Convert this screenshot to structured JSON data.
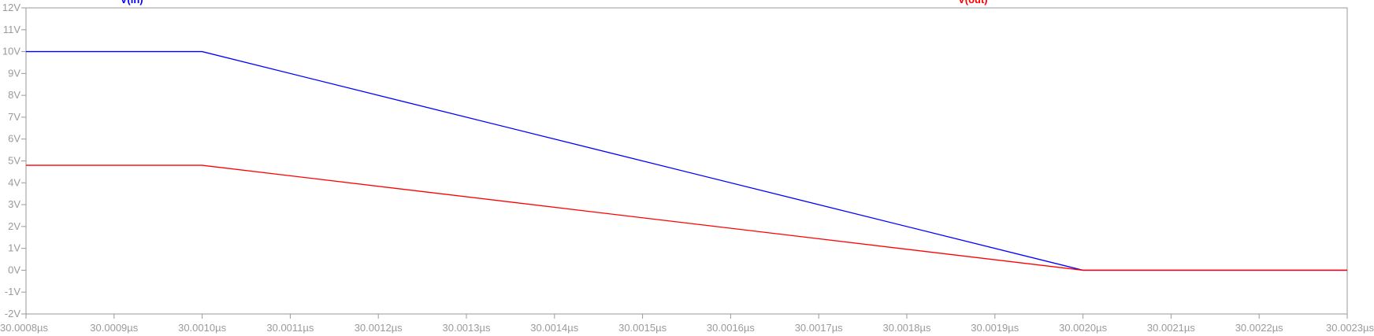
{
  "chart_data": {
    "type": "line",
    "title": "",
    "xlabel": "",
    "ylabel": "",
    "x_unit": "µs",
    "y_unit": "V",
    "xlim": [
      30.0008,
      30.0023
    ],
    "ylim": [
      -2,
      12
    ],
    "grid": false,
    "legend": "top",
    "x_ticks": [
      30.0008,
      30.0009,
      30.001,
      30.0011,
      30.0012,
      30.0013,
      30.0014,
      30.0015,
      30.0016,
      30.0017,
      30.0018,
      30.0019,
      30.002,
      30.0021,
      30.0022,
      30.0023
    ],
    "x_tick_labels": [
      "30.0008µs",
      "30.0009µs",
      "30.0010µs",
      "30.0011µs",
      "30.0012µs",
      "30.0013µs",
      "30.0014µs",
      "30.0015µs",
      "30.0016µs",
      "30.0017µs",
      "30.0018µs",
      "30.0019µs",
      "30.0020µs",
      "30.0021µs",
      "30.0022µs",
      "30.0023µs"
    ],
    "y_ticks": [
      -2,
      -1,
      0,
      1,
      2,
      3,
      4,
      5,
      6,
      7,
      8,
      9,
      10,
      11,
      12
    ],
    "y_tick_labels": [
      "-2V",
      "-1V",
      "0V",
      "1V",
      "2V",
      "3V",
      "4V",
      "5V",
      "6V",
      "7V",
      "8V",
      "9V",
      "10V",
      "11V",
      "12V"
    ],
    "series": [
      {
        "name": "V(in)",
        "color": "#0000ff",
        "legend_x": 30.00092,
        "x": [
          30.0008,
          30.001,
          30.002,
          30.0023
        ],
        "y": [
          10,
          10,
          0,
          0
        ]
      },
      {
        "name": "V(out)",
        "color": "#ff0000",
        "legend_x": 30.001875,
        "x": [
          30.0008,
          30.001,
          30.002,
          30.0023
        ],
        "y": [
          4.8,
          4.8,
          0,
          0
        ]
      }
    ]
  }
}
